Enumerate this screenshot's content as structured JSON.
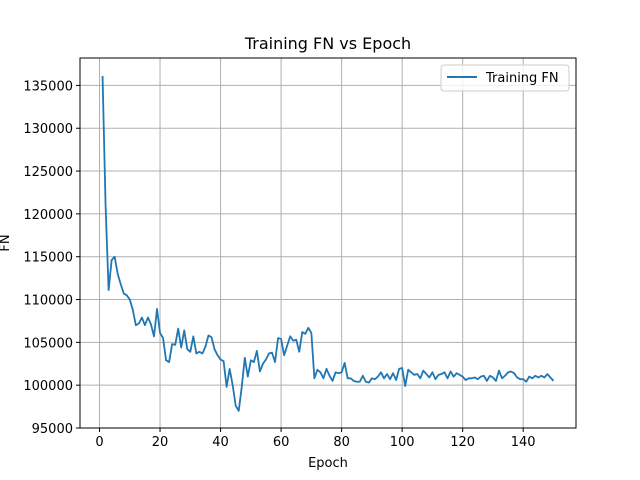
{
  "chart_data": {
    "type": "line",
    "title": "Training FN vs Epoch",
    "xlabel": "Epoch",
    "ylabel": "FN",
    "xlim": [
      -6.45,
      157.45
    ],
    "ylim": [
      95000,
      138200
    ],
    "xticks": [
      0,
      20,
      40,
      60,
      80,
      100,
      120,
      140
    ],
    "yticks": [
      95000,
      100000,
      105000,
      110000,
      115000,
      120000,
      125000,
      130000,
      135000
    ],
    "grid": true,
    "legend_position": "top-right",
    "series": [
      {
        "name": "Training FN",
        "color": "#1f77b4",
        "x": [
          1,
          2,
          3,
          4,
          5,
          6,
          7,
          8,
          9,
          10,
          11,
          12,
          13,
          14,
          15,
          16,
          17,
          18,
          19,
          20,
          21,
          22,
          23,
          24,
          25,
          26,
          27,
          28,
          29,
          30,
          31,
          32,
          33,
          34,
          35,
          36,
          37,
          38,
          39,
          40,
          41,
          42,
          43,
          44,
          45,
          46,
          47,
          48,
          49,
          50,
          51,
          52,
          53,
          54,
          55,
          56,
          57,
          58,
          59,
          60,
          61,
          62,
          63,
          64,
          65,
          66,
          67,
          68,
          69,
          70,
          71,
          72,
          73,
          74,
          75,
          76,
          77,
          78,
          79,
          80,
          81,
          82,
          83,
          84,
          85,
          86,
          87,
          88,
          89,
          90,
          91,
          92,
          93,
          94,
          95,
          96,
          97,
          98,
          99,
          100,
          101,
          102,
          103,
          104,
          105,
          106,
          107,
          108,
          109,
          110,
          111,
          112,
          113,
          114,
          115,
          116,
          117,
          118,
          119,
          120,
          121,
          122,
          123,
          124,
          125,
          126,
          127,
          128,
          129,
          130,
          131,
          132,
          133,
          134,
          135,
          136,
          137,
          138,
          139,
          140,
          141,
          142,
          143,
          144,
          145,
          146,
          147,
          148,
          149,
          150
        ],
        "y": [
          136100,
          121000,
          111100,
          114600,
          115000,
          113000,
          111800,
          110700,
          110500,
          110000,
          108800,
          107000,
          107200,
          107900,
          107000,
          107900,
          107100,
          105700,
          108900,
          106100,
          105500,
          102900,
          102700,
          104800,
          104700,
          106600,
          104400,
          106400,
          104200,
          103900,
          105700,
          103700,
          103900,
          103700,
          104500,
          105800,
          105600,
          104200,
          103500,
          103000,
          102800,
          99800,
          101900,
          100000,
          97600,
          97000,
          99800,
          103200,
          101000,
          102900,
          102700,
          104000,
          101600,
          102500,
          103000,
          103700,
          103800,
          102700,
          105500,
          105400,
          103500,
          104600,
          105700,
          105200,
          105300,
          103900,
          106200,
          106000,
          106700,
          106100,
          100800,
          101800,
          101500,
          100800,
          101900,
          101100,
          100500,
          101500,
          101400,
          101500,
          102600,
          100800,
          100800,
          100500,
          100400,
          100400,
          101100,
          100400,
          100300,
          100800,
          100700,
          101000,
          101500,
          100800,
          101300,
          100700,
          101400,
          100600,
          101900,
          102000,
          99900,
          101800,
          101500,
          101200,
          101300,
          100800,
          101700,
          101300,
          100900,
          101500,
          100700,
          101200,
          101300,
          101500,
          100800,
          101600,
          101000,
          101400,
          101200,
          101000,
          100600,
          100800,
          100800,
          100900,
          100700,
          101000,
          101100,
          100500,
          101100,
          100900,
          100500,
          101700,
          100800,
          101100,
          101500,
          101600,
          101400,
          100900,
          100700,
          100700,
          100400,
          101000,
          100800,
          101100,
          100900,
          101100,
          100900,
          101300,
          100900,
          100500
        ]
      }
    ]
  }
}
